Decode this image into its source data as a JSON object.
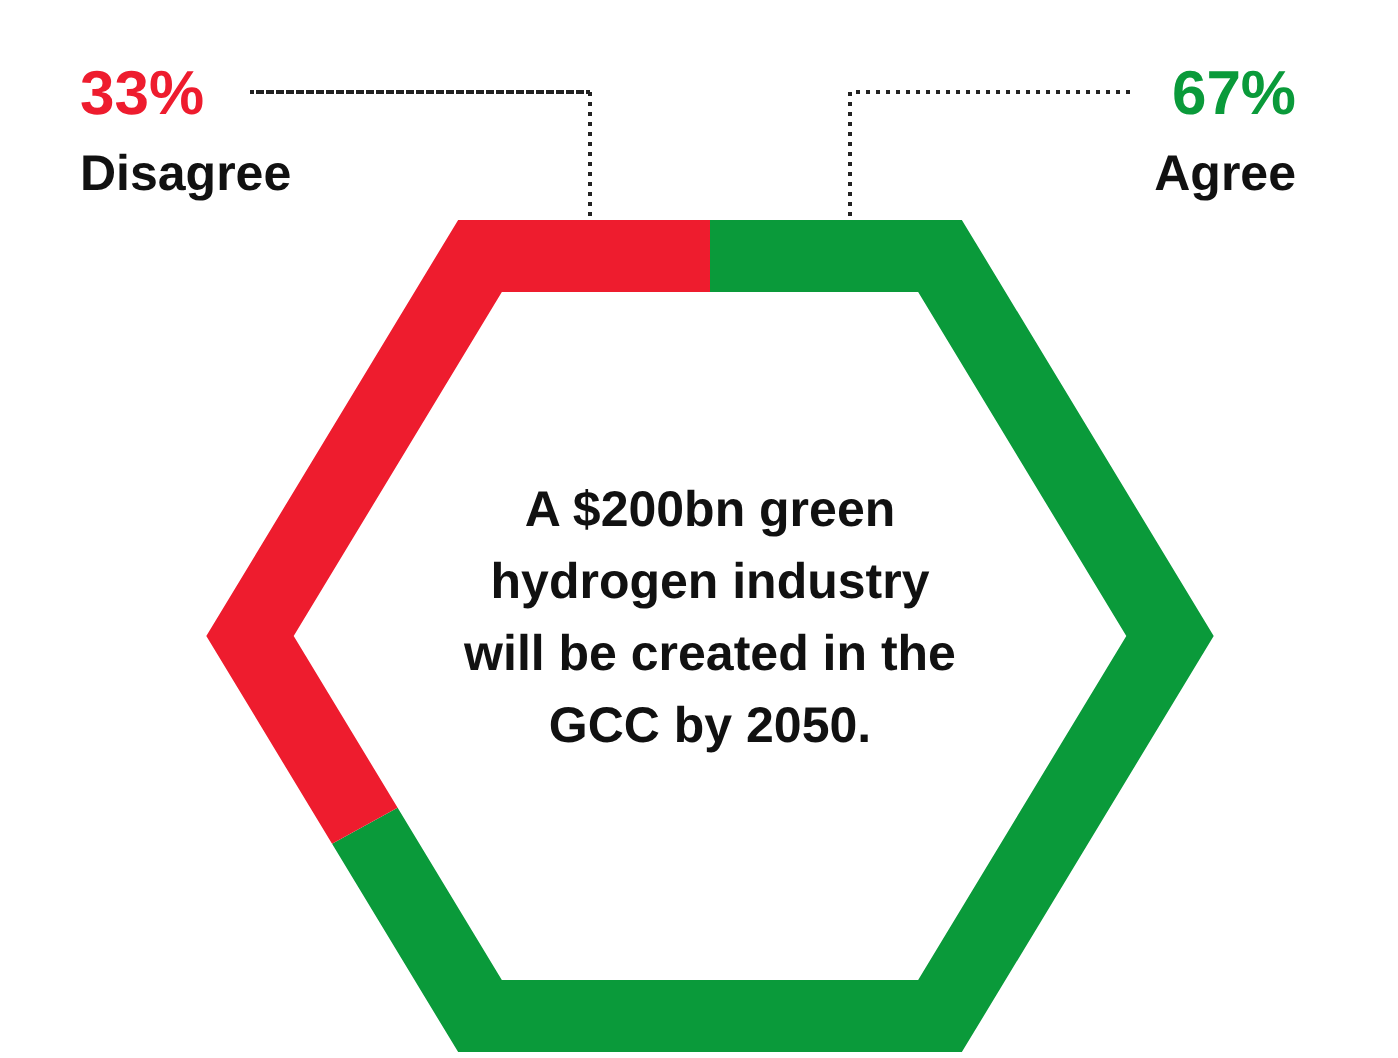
{
  "chart_data": {
    "type": "donut",
    "title": "A $200bn green\nhydrogen industry\nwill be created in the\nGCC by 2050.",
    "categories": [
      "Agree",
      "Disagree"
    ],
    "values": [
      67,
      33
    ],
    "value_labels": [
      "67%",
      "33%"
    ],
    "colors": [
      "#0a9a3a",
      "#ee1c2e"
    ]
  }
}
